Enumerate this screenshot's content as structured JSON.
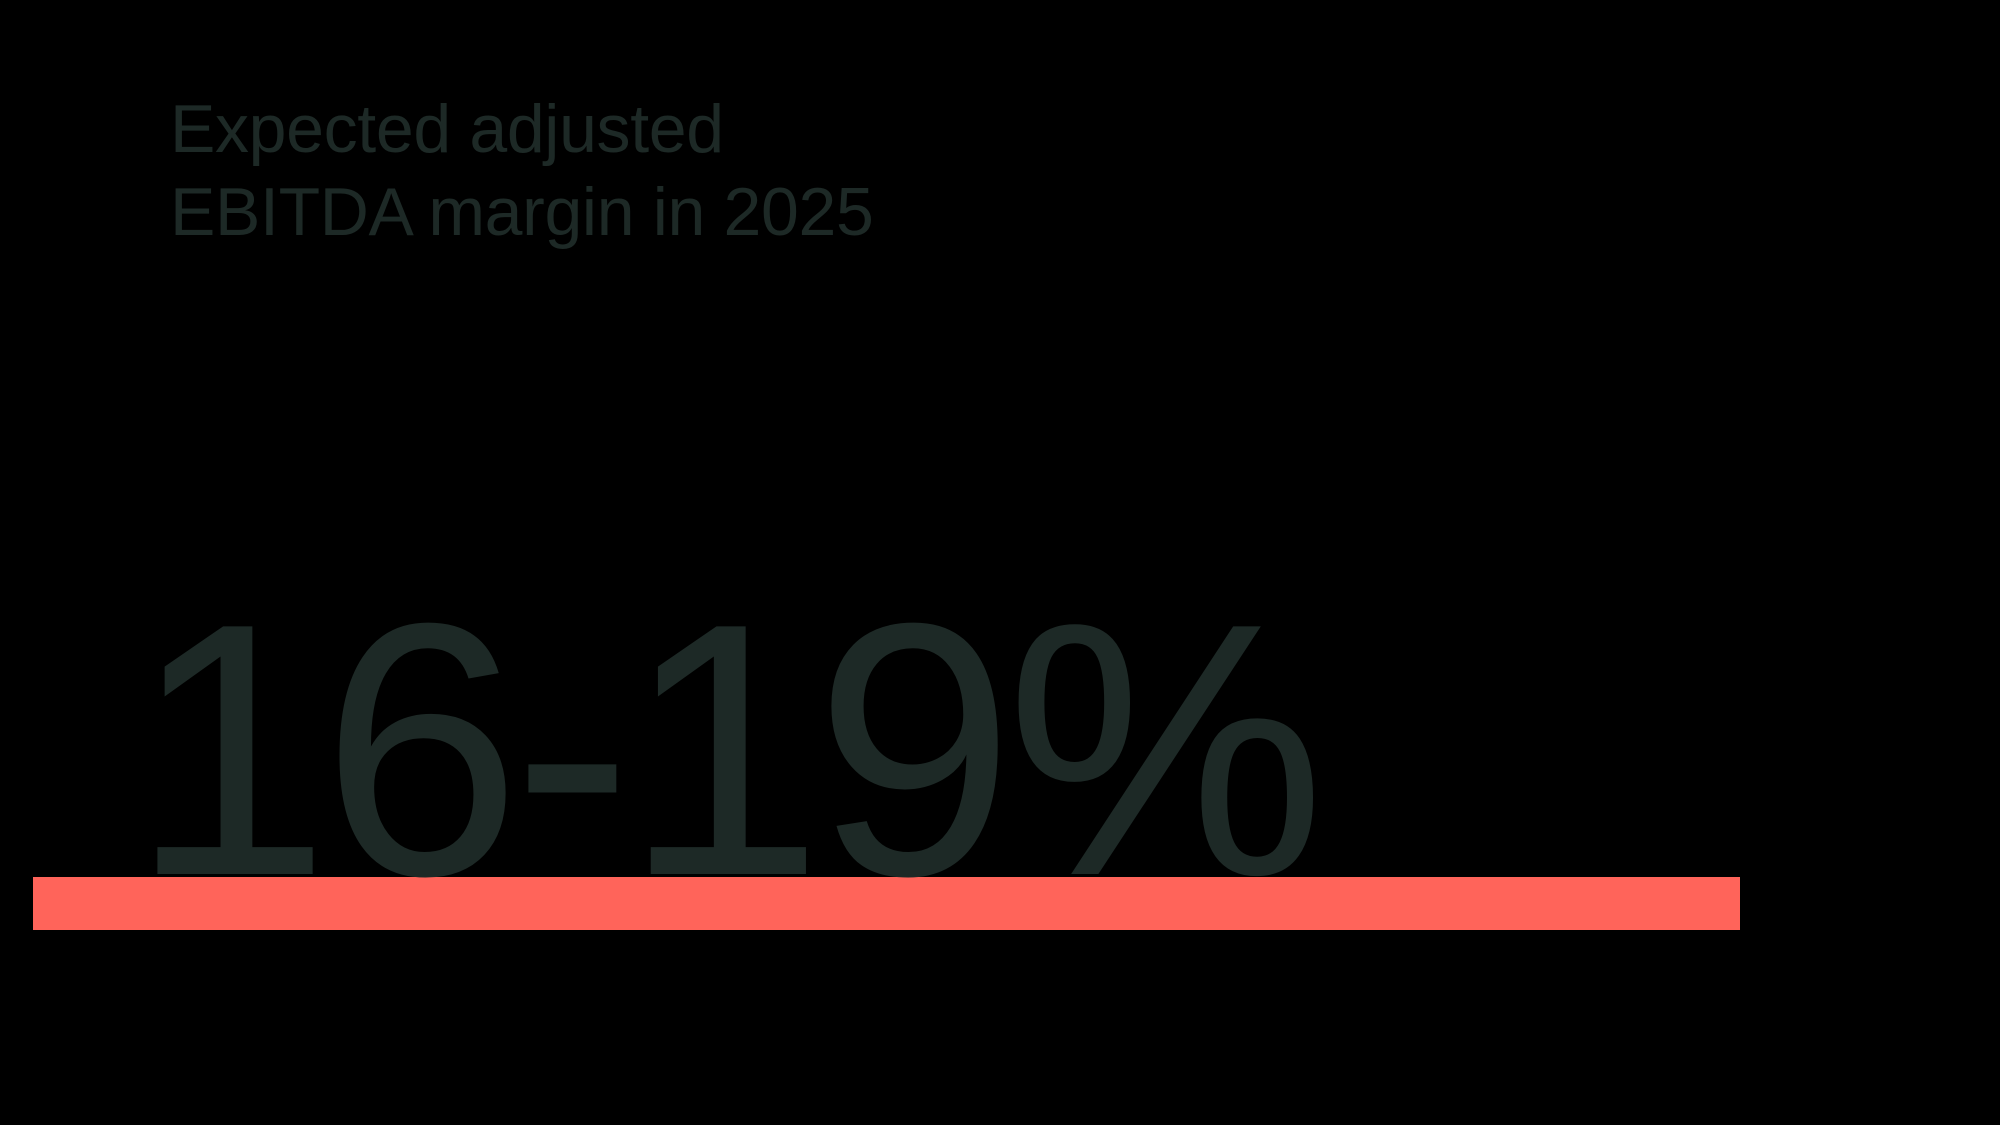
{
  "slide": {
    "title": {
      "line1": "Expected adjusted",
      "line2": "EBITDA margin in 2025"
    },
    "stat": {
      "value": "16-19%"
    },
    "colors": {
      "bg": "#000000",
      "ink": "#1d2926",
      "accent": "#ff645a"
    }
  }
}
